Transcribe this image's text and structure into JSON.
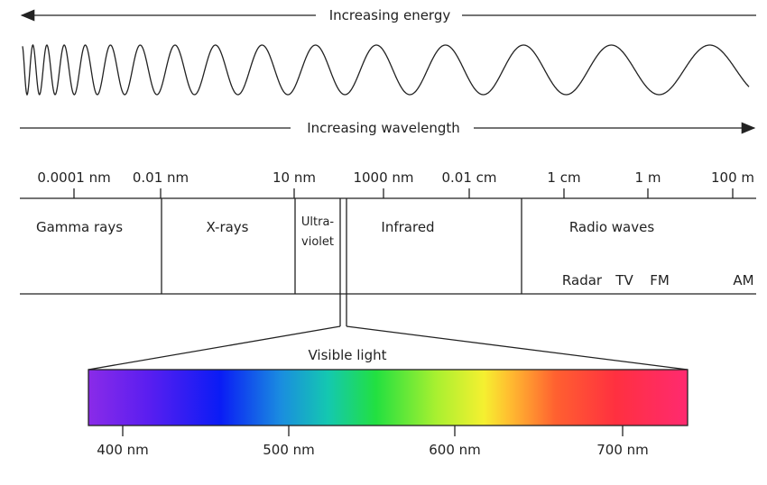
{
  "energy_arrow": "Increasing energy",
  "wavelength_arrow": "Increasing wavelength",
  "scale_ticks": [
    "0.0001 nm",
    "0.01 nm",
    "10 nm",
    "1000 nm",
    "0.01 cm",
    "1 cm",
    "1 m",
    "100 m"
  ],
  "regions": [
    "Gamma rays",
    "X-rays",
    "Ultra-",
    "violet",
    "Infrared",
    "Radio waves"
  ],
  "radio_bands": [
    "Radar",
    "TV",
    "FM",
    "AM"
  ],
  "visible_label": "Visible light",
  "visible_ticks": [
    "400 nm",
    "500 nm",
    "600 nm",
    "700 nm"
  ]
}
